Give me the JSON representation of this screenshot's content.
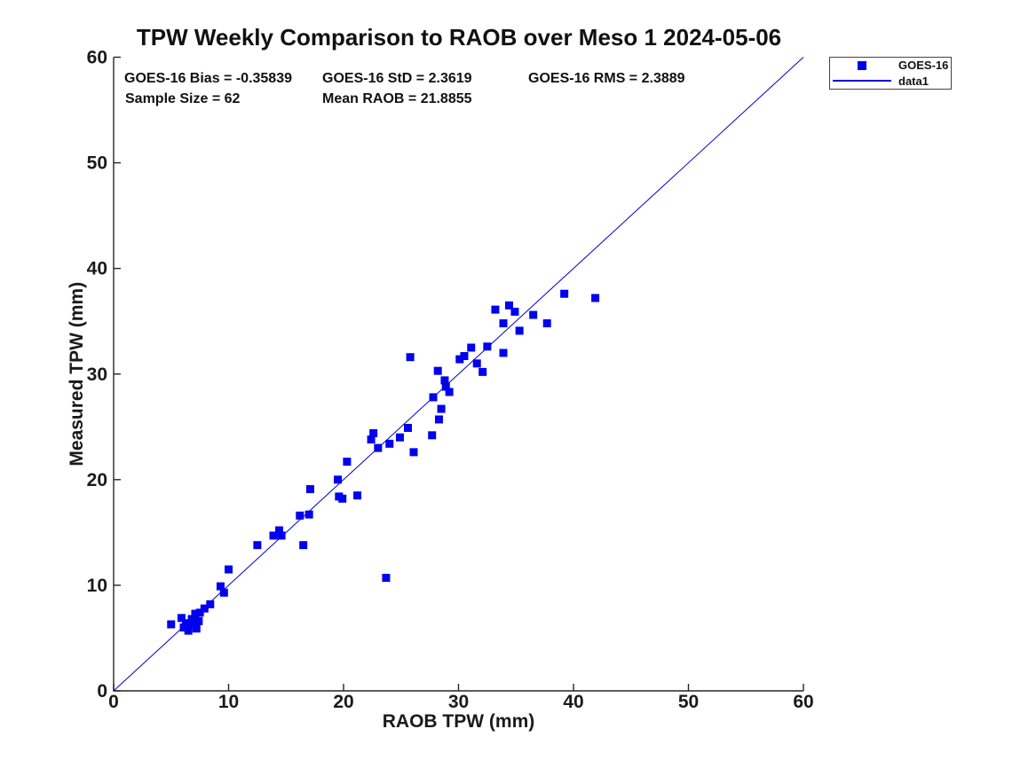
{
  "stats": {
    "bias": "GOES-16 Bias = -0.35839",
    "std": "GOES-16 StD = 2.3619",
    "rms": "GOES-16 RMS = 2.3889",
    "sample_size": "Sample Size = 62",
    "mean_raob": "Mean RAOB = 21.8855"
  },
  "legend": {
    "items": [
      {
        "label": "GOES-16",
        "symbol": "square-marker"
      },
      {
        "label": "data1",
        "symbol": "line"
      }
    ]
  },
  "colors": {
    "marker": "#0000ee",
    "line": "#0000cc",
    "axis": "#262626",
    "text": "#111111"
  },
  "chart_data": {
    "type": "scatter",
    "title": "TPW Weekly Comparison to RAOB over Meso 1 2024-05-06",
    "xlabel": "RAOB TPW (mm)",
    "ylabel": "Measured TPW (mm)",
    "xlim": [
      0,
      60
    ],
    "ylim": [
      0,
      60
    ],
    "xticks": [
      0,
      10,
      20,
      30,
      40,
      50,
      60
    ],
    "yticks": [
      0,
      10,
      20,
      30,
      40,
      50,
      60
    ],
    "grid": false,
    "legend_position": "outside-top-right",
    "reference_line": {
      "name": "data1",
      "from": [
        0,
        0
      ],
      "to": [
        60,
        60
      ]
    },
    "series": [
      {
        "name": "GOES-16",
        "marker": "square",
        "points": [
          [
            5.0,
            6.3
          ],
          [
            5.9,
            6.9
          ],
          [
            6.1,
            6.0
          ],
          [
            6.3,
            6.4
          ],
          [
            6.5,
            5.7
          ],
          [
            6.8,
            6.8
          ],
          [
            6.9,
            6.3
          ],
          [
            7.1,
            7.3
          ],
          [
            7.2,
            5.9
          ],
          [
            7.4,
            6.6
          ],
          [
            7.5,
            7.4
          ],
          [
            7.9,
            7.8
          ],
          [
            8.4,
            8.2
          ],
          [
            9.3,
            9.9
          ],
          [
            9.6,
            9.3
          ],
          [
            10.0,
            11.5
          ],
          [
            12.5,
            13.8
          ],
          [
            13.9,
            14.7
          ],
          [
            14.4,
            15.2
          ],
          [
            14.6,
            14.7
          ],
          [
            16.2,
            16.6
          ],
          [
            16.5,
            13.8
          ],
          [
            17.0,
            16.7
          ],
          [
            17.1,
            19.1
          ],
          [
            19.5,
            20.0
          ],
          [
            19.6,
            18.4
          ],
          [
            19.9,
            18.2
          ],
          [
            20.3,
            21.7
          ],
          [
            21.2,
            18.5
          ],
          [
            22.4,
            23.8
          ],
          [
            22.6,
            24.4
          ],
          [
            23.0,
            23.0
          ],
          [
            23.7,
            10.7
          ],
          [
            24.0,
            23.4
          ],
          [
            24.9,
            24.0
          ],
          [
            25.6,
            24.9
          ],
          [
            25.8,
            31.6
          ],
          [
            26.1,
            22.6
          ],
          [
            27.7,
            24.2
          ],
          [
            27.8,
            27.8
          ],
          [
            28.2,
            30.3
          ],
          [
            28.3,
            25.7
          ],
          [
            28.5,
            26.7
          ],
          [
            28.8,
            29.4
          ],
          [
            28.9,
            28.8
          ],
          [
            29.2,
            28.3
          ],
          [
            30.1,
            31.4
          ],
          [
            30.5,
            31.7
          ],
          [
            31.1,
            32.5
          ],
          [
            31.6,
            31.0
          ],
          [
            32.1,
            30.2
          ],
          [
            32.5,
            32.6
          ],
          [
            33.2,
            36.1
          ],
          [
            33.9,
            32.0
          ],
          [
            33.9,
            34.8
          ],
          [
            34.4,
            36.5
          ],
          [
            34.9,
            35.9
          ],
          [
            35.3,
            34.1
          ],
          [
            36.5,
            35.6
          ],
          [
            37.7,
            34.8
          ],
          [
            39.2,
            37.6
          ],
          [
            41.9,
            37.2
          ]
        ]
      }
    ]
  }
}
